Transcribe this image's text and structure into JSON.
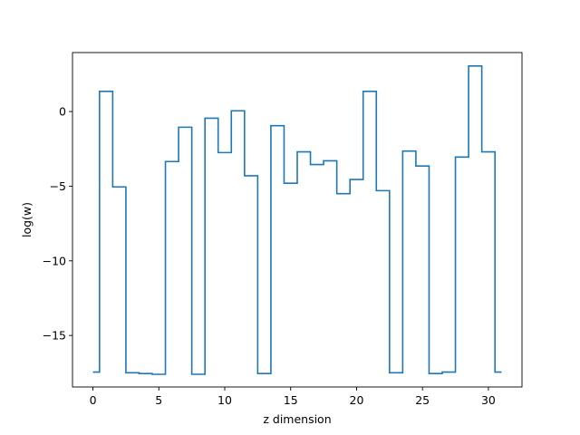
{
  "chart_data": {
    "type": "line",
    "drawstyle": "steps-mid",
    "xlabel": "z dimension",
    "ylabel": "log(w)",
    "xlim": [
      -1.55,
      32.55
    ],
    "ylim": [
      -18.45,
      3.95
    ],
    "xticks": [
      0,
      5,
      10,
      15,
      20,
      25,
      30
    ],
    "yticks": [
      0,
      -5,
      -10,
      -15
    ],
    "ytick_labels": [
      "0",
      "−5",
      "−10",
      "−15"
    ],
    "grid": false,
    "line_color": "#1f77b4",
    "x": [
      0,
      1,
      2,
      3,
      4,
      5,
      6,
      7,
      8,
      9,
      10,
      11,
      12,
      13,
      14,
      15,
      16,
      17,
      18,
      19,
      20,
      21,
      22,
      23,
      24,
      25,
      26,
      27,
      28,
      29,
      30,
      31
    ],
    "y": [
      -17.45,
      1.35,
      -5.05,
      -17.5,
      -17.55,
      -17.6,
      -3.35,
      -1.05,
      -17.6,
      -0.45,
      -2.75,
      0.05,
      -4.3,
      -17.55,
      -0.95,
      -4.8,
      -2.7,
      -3.55,
      -3.3,
      -5.5,
      -4.55,
      1.35,
      -5.3,
      -17.5,
      -2.65,
      -3.65,
      -17.55,
      -17.45,
      -3.05,
      3.05,
      -2.7,
      -17.45
    ]
  }
}
